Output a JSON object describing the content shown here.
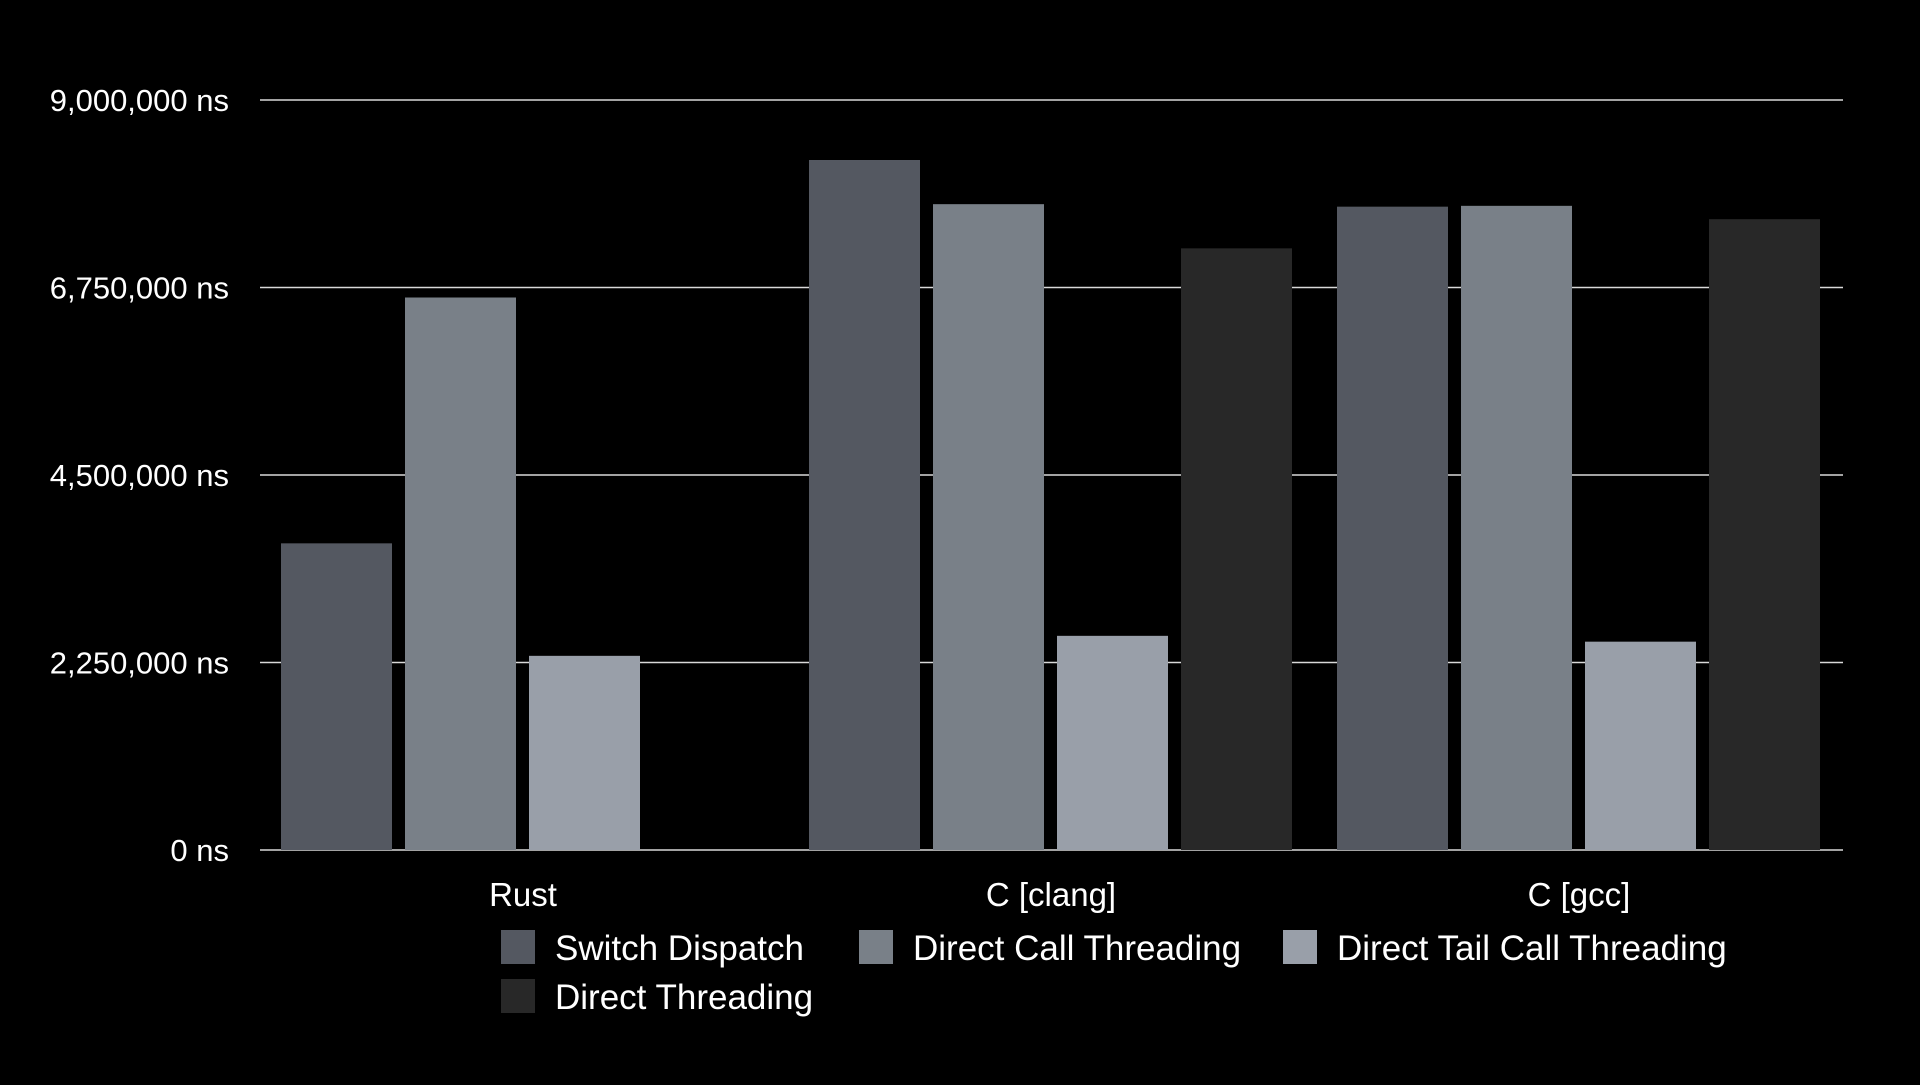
{
  "chart_data": {
    "type": "bar",
    "title": "",
    "xlabel": "",
    "ylabel": "",
    "categories": [
      "Rust",
      "C [clang]",
      "C [gcc]"
    ],
    "series": [
      {
        "name": "Switch Dispatch",
        "values": [
          3680000,
          8280000,
          7720000
        ],
        "color": "#545861"
      },
      {
        "name": "Direct Call Threading",
        "values": [
          6630000,
          7750000,
          7730000
        ],
        "color": "#798088"
      },
      {
        "name": "Direct Tail Call Threading",
        "values": [
          2330000,
          2570000,
          2500000
        ],
        "color": "#999fa9"
      },
      {
        "name": "Direct Threading",
        "values": [
          null,
          7220000,
          7570000
        ],
        "color": "#282828"
      }
    ],
    "ylim": [
      0,
      9000000
    ],
    "yticks": [
      0,
      2250000,
      4500000,
      6750000,
      9000000
    ],
    "ytick_labels": [
      "0 ns",
      "2,250,000 ns",
      "4,500,000 ns",
      "6,750,000 ns",
      "9,000,000 ns"
    ],
    "grid": true,
    "legend_position": "bottom",
    "colors": {
      "background": "#000000",
      "gridline": "#d9d9d9",
      "text": "#ffffff"
    }
  }
}
